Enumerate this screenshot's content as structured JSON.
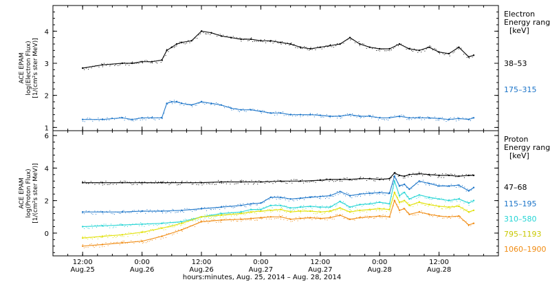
{
  "chart_data": [
    {
      "type": "scatter",
      "ylabel_lines": [
        "ACE EPAM",
        "log(Electron Flux)",
        "[1/(cm²s ster MeV)]"
      ],
      "legend_title_lines": [
        "Electron",
        "Energy ranges",
        "[keV]"
      ],
      "ylim": [
        0.9,
        4.8
      ],
      "yticks": [
        1,
        2,
        3,
        4
      ],
      "series": [
        {
          "name": "38–53",
          "color": "#000000",
          "x": [
            0,
            4,
            8,
            10,
            12,
            14,
            16,
            17,
            18,
            19,
            20,
            22,
            24,
            26,
            28,
            30,
            32,
            34,
            36,
            38,
            40,
            42,
            44,
            46,
            48,
            50,
            52,
            54,
            56,
            58,
            60,
            62,
            64,
            66,
            68,
            70,
            72,
            74,
            76,
            78,
            79
          ],
          "y": [
            2.85,
            2.95,
            3.0,
            3.0,
            3.05,
            3.05,
            3.1,
            3.4,
            3.5,
            3.6,
            3.65,
            3.7,
            4.0,
            3.95,
            3.85,
            3.8,
            3.75,
            3.75,
            3.7,
            3.7,
            3.65,
            3.6,
            3.5,
            3.45,
            3.5,
            3.55,
            3.6,
            3.8,
            3.6,
            3.5,
            3.45,
            3.45,
            3.6,
            3.45,
            3.4,
            3.5,
            3.35,
            3.3,
            3.5,
            3.2,
            3.25
          ]
        },
        {
          "name": "175–315",
          "color": "#1a73c8",
          "x": [
            0,
            4,
            8,
            10,
            12,
            14,
            16,
            17,
            18,
            19,
            20,
            22,
            24,
            26,
            28,
            30,
            32,
            34,
            36,
            38,
            40,
            42,
            44,
            46,
            48,
            50,
            52,
            54,
            56,
            58,
            60,
            62,
            64,
            66,
            68,
            70,
            72,
            74,
            76,
            78,
            79
          ],
          "y": [
            1.25,
            1.25,
            1.3,
            1.25,
            1.3,
            1.3,
            1.3,
            1.75,
            1.8,
            1.8,
            1.75,
            1.7,
            1.8,
            1.75,
            1.7,
            1.6,
            1.55,
            1.55,
            1.5,
            1.45,
            1.45,
            1.4,
            1.4,
            1.4,
            1.38,
            1.35,
            1.35,
            1.4,
            1.35,
            1.35,
            1.3,
            1.3,
            1.35,
            1.3,
            1.3,
            1.3,
            1.28,
            1.25,
            1.28,
            1.25,
            1.3
          ]
        }
      ]
    },
    {
      "type": "scatter",
      "ylabel_lines": [
        "ACE EPAM",
        "log(Proton Flux)",
        "[1/(cm²s ster MeV)]"
      ],
      "legend_title_lines": [
        "Proton",
        "Energy ranges",
        "[keV]"
      ],
      "ylim": [
        -1.4,
        6.3
      ],
      "yticks": [
        0,
        2,
        4,
        6
      ],
      "series": [
        {
          "name": "47–68",
          "color": "#000000",
          "x": [
            0,
            4,
            8,
            12,
            16,
            20,
            24,
            28,
            32,
            36,
            40,
            44,
            48,
            50,
            52,
            54,
            56,
            58,
            60,
            62,
            63,
            64,
            65,
            66,
            68,
            70,
            72,
            74,
            76,
            78,
            79
          ],
          "y": [
            3.1,
            3.1,
            3.1,
            3.1,
            3.1,
            3.1,
            3.1,
            3.15,
            3.15,
            3.15,
            3.2,
            3.2,
            3.25,
            3.3,
            3.3,
            3.3,
            3.35,
            3.35,
            3.3,
            3.35,
            3.7,
            3.55,
            3.5,
            3.6,
            3.65,
            3.6,
            3.55,
            3.55,
            3.5,
            3.55,
            3.55
          ]
        },
        {
          "name": "115–195",
          "color": "#1a73c8",
          "x": [
            0,
            4,
            8,
            12,
            16,
            20,
            24,
            28,
            32,
            34,
            36,
            38,
            40,
            42,
            44,
            46,
            48,
            50,
            52,
            54,
            56,
            58,
            60,
            62,
            63,
            64,
            65,
            66,
            68,
            70,
            72,
            74,
            76,
            78,
            79
          ],
          "y": [
            1.3,
            1.3,
            1.3,
            1.35,
            1.35,
            1.4,
            1.5,
            1.6,
            1.7,
            1.8,
            1.85,
            2.2,
            2.2,
            2.1,
            2.15,
            2.2,
            2.25,
            2.3,
            2.55,
            2.3,
            2.4,
            2.45,
            2.5,
            2.45,
            3.5,
            2.9,
            3.0,
            2.7,
            3.2,
            3.05,
            2.9,
            2.9,
            2.95,
            2.6,
            2.8
          ]
        },
        {
          "name": "310–580",
          "color": "#22d4d4",
          "x": [
            0,
            4,
            8,
            12,
            16,
            20,
            24,
            28,
            32,
            34,
            36,
            38,
            40,
            42,
            44,
            46,
            48,
            50,
            52,
            54,
            56,
            58,
            60,
            62,
            63,
            64,
            65,
            66,
            68,
            70,
            72,
            74,
            76,
            78,
            79
          ],
          "y": [
            0.4,
            0.45,
            0.5,
            0.55,
            0.6,
            0.7,
            1.0,
            1.2,
            1.3,
            1.45,
            1.45,
            1.7,
            1.7,
            1.55,
            1.6,
            1.65,
            1.6,
            1.6,
            1.95,
            1.6,
            1.75,
            1.8,
            1.9,
            1.8,
            3.2,
            2.3,
            2.5,
            2.1,
            2.35,
            2.2,
            2.1,
            2.0,
            2.1,
            1.85,
            2.0
          ]
        },
        {
          "name": "795–1193",
          "color": "#e0e000",
          "x": [
            0,
            4,
            8,
            12,
            16,
            20,
            24,
            28,
            32,
            34,
            36,
            38,
            40,
            42,
            44,
            46,
            48,
            50,
            52,
            54,
            56,
            58,
            60,
            62,
            63,
            64,
            65,
            66,
            68,
            70,
            72,
            74,
            76,
            78,
            79
          ],
          "y": [
            -0.3,
            -0.2,
            -0.1,
            0.05,
            0.3,
            0.6,
            1.0,
            1.1,
            1.2,
            1.3,
            1.35,
            1.4,
            1.45,
            1.3,
            1.35,
            1.35,
            1.3,
            1.35,
            1.55,
            1.3,
            1.4,
            1.45,
            1.5,
            1.45,
            2.5,
            1.9,
            2.0,
            1.7,
            1.9,
            1.75,
            1.65,
            1.6,
            1.65,
            1.3,
            1.4
          ]
        },
        {
          "name": "1060–1900",
          "color": "#f08a10",
          "x": [
            0,
            4,
            8,
            12,
            16,
            20,
            24,
            28,
            32,
            34,
            36,
            38,
            40,
            42,
            44,
            46,
            48,
            50,
            52,
            54,
            56,
            58,
            60,
            62,
            63,
            64,
            65,
            66,
            68,
            70,
            72,
            74,
            76,
            78,
            79
          ],
          "y": [
            -0.8,
            -0.7,
            -0.6,
            -0.5,
            -0.2,
            0.2,
            0.7,
            0.8,
            0.85,
            0.9,
            0.95,
            1.0,
            1.0,
            0.85,
            0.9,
            0.95,
            0.9,
            0.95,
            1.1,
            0.85,
            0.95,
            1.0,
            1.05,
            1.0,
            2.0,
            1.4,
            1.5,
            1.15,
            1.3,
            1.15,
            1.05,
            1.0,
            1.05,
            0.5,
            0.6
          ]
        }
      ]
    }
  ],
  "x_axis": {
    "range_hours": [
      -6,
      84
    ],
    "ticks": [
      {
        "h": 0,
        "time": "12:00",
        "date": "Aug.25"
      },
      {
        "h": 12,
        "time": "0:00",
        "date": "Aug.26"
      },
      {
        "h": 24,
        "time": "12:00",
        "date": "Aug.26"
      },
      {
        "h": 36,
        "time": "0:00",
        "date": "Aug.27"
      },
      {
        "h": 48,
        "time": "12:00",
        "date": "Aug.27"
      },
      {
        "h": 60,
        "time": "0:00",
        "date": "Aug.28"
      },
      {
        "h": 72,
        "time": "12:00",
        "date": "Aug.28"
      }
    ],
    "label": "hours:minutes, Aug. 25, 2014 – Aug. 28, 2014"
  }
}
